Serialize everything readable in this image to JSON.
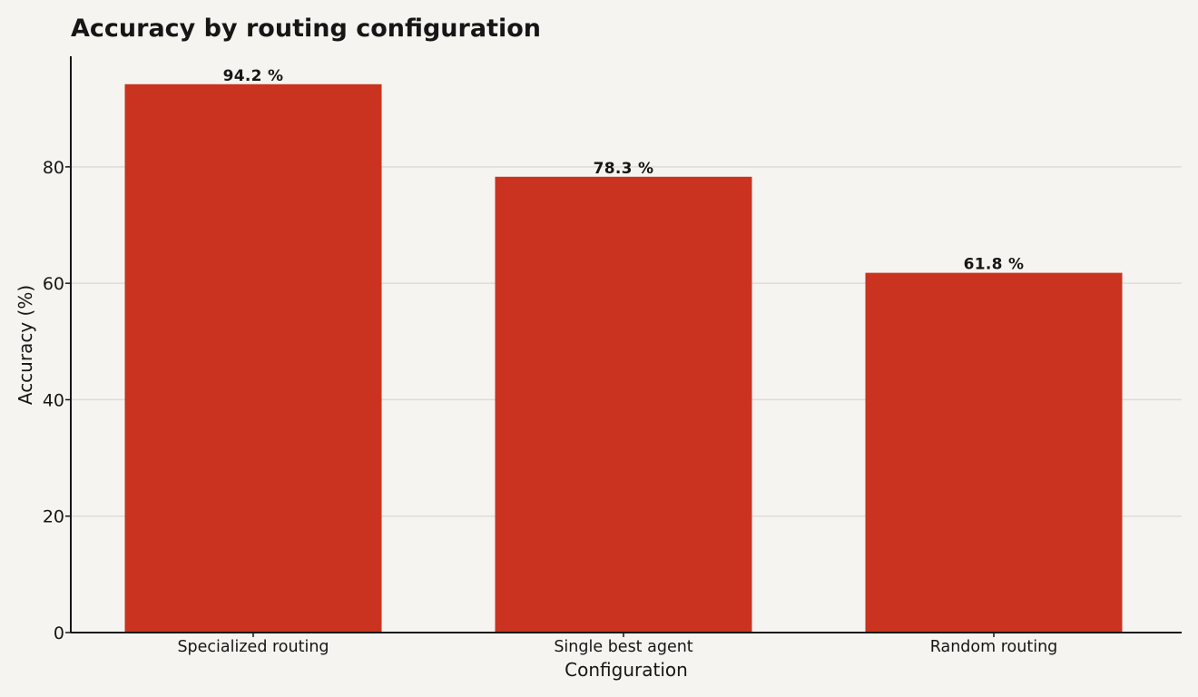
{
  "chart_data": {
    "type": "bar",
    "title": "Accuracy by routing configuration",
    "xlabel": "Configuration",
    "ylabel": "Accuracy (%)",
    "categories": [
      "Specialized routing",
      "Single best agent",
      "Random routing"
    ],
    "values": [
      94.2,
      78.3,
      61.8
    ],
    "data_labels": [
      "94.2 %",
      "78.3 %",
      "61.8 %"
    ],
    "ylim": [
      0,
      99
    ],
    "yticks": [
      0,
      20,
      40,
      60,
      80
    ],
    "ytick_labels": [
      "0",
      "20",
      "40",
      "60",
      "80"
    ],
    "grid": "horizontal",
    "legend": "none",
    "bar_color": "#c9331f",
    "background_color": "#f5f4f0"
  }
}
